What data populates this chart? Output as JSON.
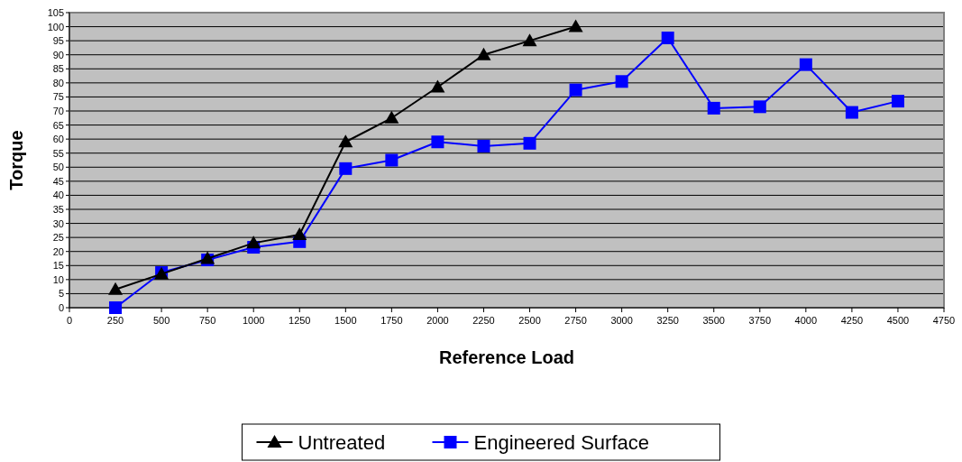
{
  "chart_data": {
    "type": "line",
    "xlabel": "Reference Load",
    "ylabel": "Torque",
    "xlim": [
      0,
      4750
    ],
    "xticks": [
      0,
      250,
      500,
      750,
      1000,
      1250,
      1500,
      1750,
      2000,
      2250,
      2500,
      2750,
      3000,
      3250,
      3500,
      3750,
      4000,
      4250,
      4500,
      4750
    ],
    "ylim": [
      0,
      105
    ],
    "yticks": [
      0,
      5,
      10,
      15,
      20,
      25,
      30,
      35,
      40,
      45,
      50,
      55,
      60,
      65,
      70,
      75,
      80,
      85,
      90,
      95,
      100,
      105
    ],
    "grid": "y",
    "legend": "bottom",
    "line_style": "solid",
    "series": [
      {
        "name": "Untreated",
        "color": "#000000",
        "marker": "triangle",
        "x": [
          250,
          500,
          750,
          1000,
          1250,
          1500,
          1750,
          2000,
          2250,
          2500,
          2750
        ],
        "values": [
          6.5,
          12,
          17.5,
          23,
          26,
          59,
          67.5,
          78.5,
          90,
          95,
          100
        ]
      },
      {
        "name": "Engineered Surface",
        "color": "#0000ff",
        "marker": "square",
        "x": [
          250,
          500,
          750,
          1000,
          1250,
          1500,
          1750,
          2000,
          2250,
          2500,
          2750,
          3000,
          3250,
          3500,
          3750,
          4000,
          4250,
          4500
        ],
        "values": [
          0,
          12.5,
          17,
          21.5,
          23.5,
          49.5,
          52.5,
          59,
          57.5,
          58.5,
          77.5,
          80.5,
          96,
          71,
          71.5,
          86.5,
          69.5,
          73.5
        ]
      }
    ]
  }
}
